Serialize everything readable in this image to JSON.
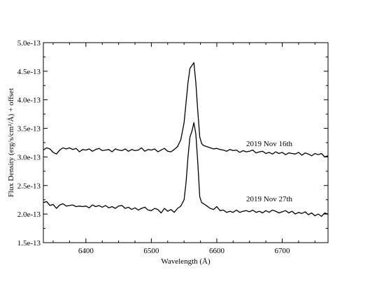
{
  "chart_data": {
    "type": "line",
    "title": "",
    "xlabel": "Wavelength (Å)",
    "ylabel": "Flux Density (erg/s/cm²/Å) + offset",
    "xlim": [
      6335,
      6770
    ],
    "ylim": [
      1.5e-13,
      5e-13
    ],
    "x_ticks": [
      6400,
      6500,
      6600,
      6700
    ],
    "x_tick_labels": [
      "6400",
      "6500",
      "6600",
      "6700"
    ],
    "y_ticks": [
      1.5e-13,
      2e-13,
      2.5e-13,
      3e-13,
      3.5e-13,
      4e-13,
      4.5e-13,
      5e-13
    ],
    "y_tick_labels": [
      "1.5e-13",
      "2.0e-13",
      "2.5e-13",
      "3.0e-13",
      "3.5e-13",
      "4.0e-13",
      "4.5e-13",
      "5.0e-13"
    ],
    "grid": false,
    "legend": "none",
    "annotations": [
      {
        "text": "2019 Nov 16th",
        "x": 6645,
        "y": 3.19e-13
      },
      {
        "text": "2019 Nov 27th",
        "x": 6645,
        "y": 2.22e-13
      }
    ],
    "series": [
      {
        "name": "2019 Nov 16th",
        "color": "#000000",
        "x": [
          6335,
          6340,
          6345,
          6350,
          6355,
          6360,
          6365,
          6370,
          6375,
          6380,
          6385,
          6390,
          6395,
          6400,
          6405,
          6410,
          6415,
          6420,
          6425,
          6430,
          6435,
          6440,
          6445,
          6450,
          6455,
          6460,
          6465,
          6470,
          6475,
          6480,
          6485,
          6490,
          6495,
          6500,
          6505,
          6510,
          6515,
          6520,
          6525,
          6530,
          6535,
          6540,
          6545,
          6550,
          6553,
          6556,
          6559,
          6562,
          6565,
          6568,
          6571,
          6574,
          6577,
          6580,
          6585,
          6590,
          6595,
          6600,
          6605,
          6610,
          6615,
          6620,
          6625,
          6630,
          6635,
          6640,
          6645,
          6650,
          6655,
          6660,
          6665,
          6670,
          6675,
          6680,
          6685,
          6690,
          6695,
          6700,
          6705,
          6710,
          6715,
          6720,
          6725,
          6730,
          6735,
          6740,
          6745,
          6750,
          6755,
          6760,
          6765,
          6770
        ],
        "values": [
          3.12e-13,
          3.16e-13,
          3.14e-13,
          3.08e-13,
          3.05e-13,
          3.12e-13,
          3.16e-13,
          3.14e-13,
          3.16e-13,
          3.13e-13,
          3.15e-13,
          3.09e-13,
          3.13e-13,
          3.12e-13,
          3.14e-13,
          3.1e-13,
          3.13e-13,
          3.15e-13,
          3.11e-13,
          3.12e-13,
          3.13e-13,
          3.09e-13,
          3.14e-13,
          3.12e-13,
          3.11e-13,
          3.14e-13,
          3.1e-13,
          3.13e-13,
          3.11e-13,
          3.12e-13,
          3.16e-13,
          3.1e-13,
          3.13e-13,
          3.12e-13,
          3.14e-13,
          3.09e-13,
          3.12e-13,
          3.15e-13,
          3.1e-13,
          3.09e-13,
          3.13e-13,
          3.18e-13,
          3.3e-13,
          3.6e-13,
          3.95e-13,
          4.3e-13,
          4.55e-13,
          4.6e-13,
          4.65e-13,
          4.3e-13,
          3.8e-13,
          3.35e-13,
          3.23e-13,
          3.2e-13,
          3.18e-13,
          3.16e-13,
          3.14e-13,
          3.15e-13,
          3.13e-13,
          3.12e-13,
          3.1e-13,
          3.13e-13,
          3.11e-13,
          3.12e-13,
          3.08e-13,
          3.11e-13,
          3.09e-13,
          3.1e-13,
          3.12e-13,
          3.07e-13,
          3.09e-13,
          3.1e-13,
          3.06e-13,
          3.08e-13,
          3.05e-13,
          3.09e-13,
          3.06e-13,
          3.08e-13,
          3.04e-13,
          3.07e-13,
          3.06e-13,
          3.05e-13,
          3.08e-13,
          3.03e-13,
          3.07e-13,
          3.05e-13,
          3.02e-13,
          3.06e-13,
          3.04e-13,
          3.06e-13,
          3e-13,
          3.02e-13
        ]
      },
      {
        "name": "2019 Nov 27th",
        "color": "#000000",
        "x": [
          6335,
          6340,
          6345,
          6350,
          6355,
          6360,
          6365,
          6370,
          6375,
          6380,
          6385,
          6390,
          6395,
          6400,
          6405,
          6410,
          6415,
          6420,
          6425,
          6430,
          6435,
          6440,
          6445,
          6450,
          6455,
          6460,
          6465,
          6470,
          6475,
          6480,
          6485,
          6490,
          6495,
          6500,
          6505,
          6510,
          6515,
          6520,
          6525,
          6530,
          6535,
          6540,
          6545,
          6550,
          6553,
          6556,
          6559,
          6562,
          6565,
          6568,
          6571,
          6574,
          6577,
          6580,
          6585,
          6590,
          6595,
          6600,
          6605,
          6610,
          6615,
          6620,
          6625,
          6630,
          6635,
          6640,
          6645,
          6650,
          6655,
          6660,
          6665,
          6670,
          6675,
          6680,
          6685,
          6690,
          6695,
          6700,
          6705,
          6710,
          6715,
          6720,
          6725,
          6730,
          6735,
          6740,
          6745,
          6750,
          6755,
          6760,
          6765,
          6770
        ],
        "values": [
          2.2e-13,
          2.22e-13,
          2.15e-13,
          2.17e-13,
          2.1e-13,
          2.16e-13,
          2.18e-13,
          2.14e-13,
          2.15e-13,
          2.16e-13,
          2.13e-13,
          2.14e-13,
          2.13e-13,
          2.14e-13,
          2.11e-13,
          2.16e-13,
          2.13e-13,
          2.15e-13,
          2.12e-13,
          2.15e-13,
          2.11e-13,
          2.13e-13,
          2.1e-13,
          2.14e-13,
          2.15e-13,
          2.1e-13,
          2.12e-13,
          2.08e-13,
          2.11e-13,
          2.07e-13,
          2.1e-13,
          2.12e-13,
          2.07e-13,
          2.06e-13,
          2.1e-13,
          2.08e-13,
          2.02e-13,
          2.1e-13,
          2.05e-13,
          2.08e-13,
          2.03e-13,
          2.1e-13,
          2.14e-13,
          2.25e-13,
          2.55e-13,
          3e-13,
          3.35e-13,
          3.45e-13,
          3.6e-13,
          3.4e-13,
          2.9e-13,
          2.3e-13,
          2.2e-13,
          2.18e-13,
          2.14e-13,
          2.1e-13,
          2.08e-13,
          2.13e-13,
          2.06e-13,
          2.07e-13,
          2.03e-13,
          2.05e-13,
          2.03e-13,
          2.07e-13,
          2.03e-13,
          2.05e-13,
          2.06e-13,
          2.04e-13,
          2.07e-13,
          2.03e-13,
          2.05e-13,
          2.02e-13,
          2.06e-13,
          2.03e-13,
          2.07e-13,
          2.05e-13,
          2.02e-13,
          2.04e-13,
          2.06e-13,
          2.02e-13,
          2.05e-13,
          2e-13,
          2.03e-13,
          2.01e-13,
          2.04e-13,
          1.99e-13,
          2.02e-13,
          1.97e-13,
          2e-13,
          1.96e-13,
          2.02e-13,
          2e-13
        ]
      }
    ]
  }
}
